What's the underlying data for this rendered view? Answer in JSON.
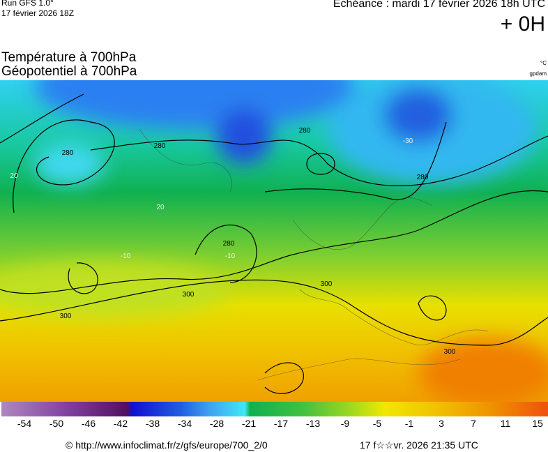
{
  "header": {
    "run": "Run GFS 1.0°",
    "run_date": "17 février 2026 18Z",
    "valid": "Echéance : mardi 17 février 2026 18h UTC",
    "lead": "+ 0H"
  },
  "titles": [
    "Température à 700hPa",
    "Géopotentiel à 700hPa"
  ],
  "units": [
    "°C",
    "gpdam"
  ],
  "contour_labels": [
    "280",
    "280",
    "280",
    "280",
    "280",
    "300",
    "300",
    "300",
    "300",
    "20",
    "20",
    "-10",
    "-10",
    "-30"
  ],
  "colorbar": {
    "labels": [
      -54,
      -50,
      -46,
      -42,
      -38,
      -34,
      -28,
      -21,
      -17,
      -13,
      -9,
      -5,
      -1,
      3,
      7,
      11,
      15
    ]
  },
  "footer": {
    "source": "© http://www.infoclimat.fr/z/gfs/europe/700_2/0",
    "generated": "17 f☆☆vr. 2026 21:35 UTC"
  }
}
